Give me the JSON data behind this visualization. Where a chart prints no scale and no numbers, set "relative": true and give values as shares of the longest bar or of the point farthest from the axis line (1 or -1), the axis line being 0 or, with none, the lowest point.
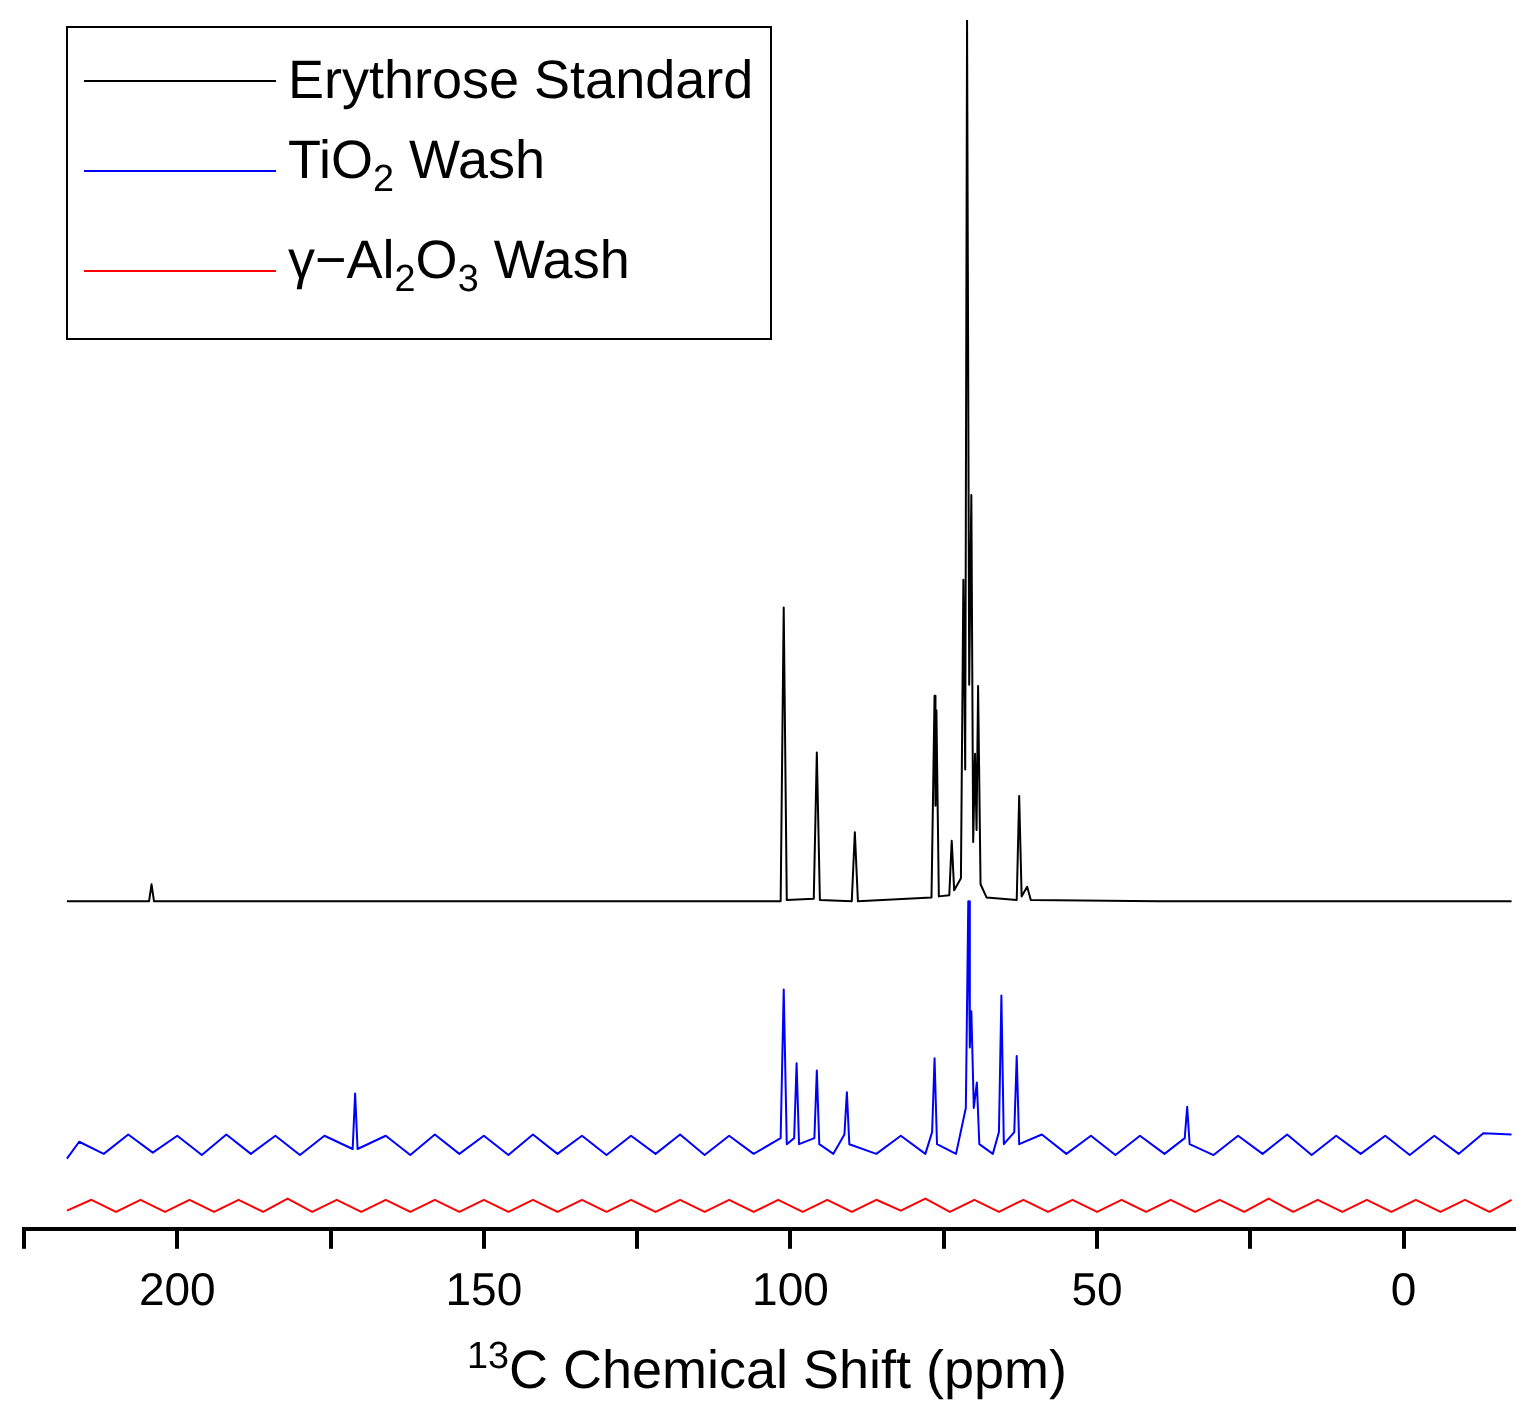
{
  "chart_data": {
    "type": "line",
    "relative": true,
    "xlabel": "$^{13}$C Chemical Shift (ppm)",
    "xlim": [
      225,
      -18
    ],
    "xticks": [
      {
        "value": 225,
        "label": null
      },
      200,
      {
        "value": 175,
        "label": null
      },
      150,
      {
        "value": 125,
        "label": null
      },
      100,
      {
        "value": 75,
        "label": null
      },
      50,
      {
        "value": 25,
        "label": null
      },
      0
    ],
    "legend": "top left",
    "series": [
      {
        "name": "Erythrose Standard",
        "color": "#000000",
        "x": [
          218,
          204.6,
          204.2,
          203.8,
          101.6,
          101.1,
          100.6,
          96.2,
          95.7,
          95.2,
          90.0,
          89.5,
          89.0,
          77.0,
          76.5,
          76.35,
          76.2,
          75.8,
          74.1,
          73.7,
          73.3,
          72.2,
          71.8,
          71.5,
          71.2,
          70.85,
          70.5,
          70.2,
          69.9,
          69.65,
          69.4,
          69.0,
          68.0,
          63.1,
          62.7,
          62.3,
          61.4,
          60.8,
          40,
          -17.6
        ],
        "values": [
          0.271,
          0.271,
          0.285,
          0.271,
          0.271,
          0.514,
          0.272,
          0.273,
          0.394,
          0.272,
          0.271,
          0.328,
          0.271,
          0.274,
          0.441,
          0.35,
          0.429,
          0.275,
          0.276,
          0.321,
          0.28,
          0.29,
          0.537,
          0.38,
          1,
          0.45,
          0.607,
          0.32,
          0.393,
          0.33,
          0.449,
          0.285,
          0.274,
          0.272,
          0.358,
          0.275,
          0.283,
          0.272,
          0.271,
          0.271
        ]
      },
      {
        "name": "TiO$_{2}$ Wash",
        "color": "#0000ff",
        "x": [
          218,
          216,
          212,
          208,
          204,
          200,
          196,
          192,
          188,
          184,
          180,
          176,
          171.4,
          171,
          170.6,
          166,
          162,
          158,
          154,
          150,
          146,
          142,
          138,
          134,
          130,
          126,
          122,
          118,
          114,
          110,
          106,
          101.6,
          101.1,
          100.6,
          99.4,
          99.0,
          98.6,
          96.1,
          95.7,
          95.3,
          93,
          91.2,
          90.8,
          90.4,
          86,
          82,
          78,
          76.9,
          76.5,
          76.1,
          73,
          71.4,
          71.0,
          70.75,
          70.5,
          70.1,
          69.6,
          69.2,
          67,
          66.0,
          65.6,
          65.2,
          63.5,
          63.1,
          62.7,
          59,
          55,
          51,
          47,
          43,
          39,
          35.7,
          35.3,
          34.9,
          31,
          27,
          23,
          19,
          15,
          11,
          7,
          3,
          -1,
          -5,
          -9,
          -13,
          -17.6
        ],
        "values": [
          0.058,
          0.072,
          0.062,
          0.078,
          0.063,
          0.077,
          0.061,
          0.078,
          0.062,
          0.077,
          0.061,
          0.077,
          0.066,
          0.112,
          0.066,
          0.077,
          0.061,
          0.078,
          0.062,
          0.077,
          0.061,
          0.078,
          0.062,
          0.077,
          0.061,
          0.077,
          0.062,
          0.078,
          0.061,
          0.077,
          0.062,
          0.075,
          0.198,
          0.07,
          0.075,
          0.137,
          0.07,
          0.075,
          0.131,
          0.07,
          0.062,
          0.078,
          0.113,
          0.07,
          0.062,
          0.077,
          0.062,
          0.08,
          0.141,
          0.07,
          0.062,
          0.1,
          0.271,
          0.15,
          0.18,
          0.1,
          0.121,
          0.07,
          0.062,
          0.08,
          0.193,
          0.07,
          0.08,
          0.143,
          0.07,
          0.078,
          0.062,
          0.077,
          0.061,
          0.077,
          0.062,
          0.075,
          0.101,
          0.07,
          0.061,
          0.077,
          0.062,
          0.078,
          0.061,
          0.077,
          0.062,
          0.077,
          0.061,
          0.077,
          0.062,
          0.079,
          0.078
        ]
      },
      {
        "name": "γ−Al$_{2}$O$_{3}$ Wash",
        "color": "#ff0000",
        "x": [
          218,
          214,
          210,
          206,
          202,
          198,
          194,
          190,
          186,
          182,
          178,
          174,
          170,
          166,
          162,
          158,
          154,
          150,
          146,
          142,
          138,
          134,
          130,
          126,
          122,
          118,
          114,
          110,
          106,
          102,
          98,
          94,
          90,
          86,
          82,
          78,
          74,
          70,
          66,
          62,
          58,
          54,
          50,
          46,
          42,
          38,
          34,
          30,
          26,
          22,
          18,
          14,
          10,
          6,
          2,
          -2,
          -6,
          -10,
          -14,
          -17.6
        ],
        "values": [
          0.015,
          0.024,
          0.014,
          0.024,
          0.014,
          0.024,
          0.014,
          0.024,
          0.014,
          0.025,
          0.014,
          0.024,
          0.014,
          0.024,
          0.014,
          0.024,
          0.014,
          0.024,
          0.014,
          0.024,
          0.014,
          0.024,
          0.014,
          0.024,
          0.014,
          0.024,
          0.014,
          0.024,
          0.014,
          0.024,
          0.014,
          0.024,
          0.014,
          0.024,
          0.015,
          0.025,
          0.014,
          0.024,
          0.014,
          0.024,
          0.014,
          0.024,
          0.014,
          0.024,
          0.014,
          0.024,
          0.014,
          0.024,
          0.014,
          0.025,
          0.014,
          0.024,
          0.014,
          0.024,
          0.014,
          0.024,
          0.014,
          0.024,
          0.014,
          0.024
        ]
      }
    ]
  }
}
